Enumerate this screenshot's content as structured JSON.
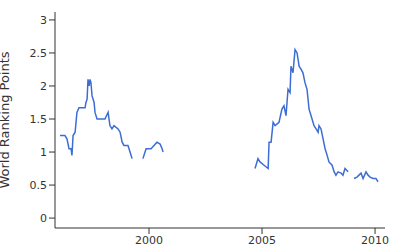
{
  "chart_data": {
    "type": "line",
    "y_label": "World Ranking Points",
    "color": "#3d6dd4",
    "xlim": [
      1995.84,
      2010.44
    ],
    "ylim": [
      -0.15,
      3.12
    ],
    "xticks": [
      2000,
      2005,
      2010
    ],
    "yticks": [
      0,
      0.5,
      1,
      1.5,
      2,
      2.5,
      3
    ],
    "grid": false,
    "x": [
      1996.06,
      1996.28,
      1996.37,
      1996.46,
      1996.55,
      1996.59,
      1996.64,
      1996.73,
      1996.81,
      1996.9,
      1997.17,
      1997.21,
      1997.26,
      1997.3,
      1997.35,
      1997.39,
      1997.43,
      1997.48,
      1997.57,
      1997.61,
      1997.7,
      1998.05,
      1998.19,
      1998.27,
      1998.36,
      1998.45,
      1998.63,
      1998.72,
      1998.81,
      1998.89,
      1999.07,
      1999.16,
      1999.25,
      1999.6,
      1999.73,
      1999.87,
      2000.09,
      2000.22,
      2000.35,
      2000.49,
      2000.58,
      2000.62,
      2002.5,
      2004.69,
      2004.82,
      2004.91,
      2005.09,
      2005.27,
      2005.31,
      2005.4,
      2005.49,
      2005.58,
      2005.75,
      2005.88,
      2005.97,
      2006.06,
      2006.15,
      2006.24,
      2006.28,
      2006.37,
      2006.46,
      2006.55,
      2006.64,
      2006.73,
      2006.81,
      2006.9,
      2006.99,
      2007.08,
      2007.17,
      2007.3,
      2007.39,
      2007.48,
      2007.52,
      2007.61,
      2007.7,
      2007.79,
      2007.88,
      2007.96,
      2008.1,
      2008.19,
      2008.27,
      2008.36,
      2008.5,
      2008.58,
      2008.67,
      2008.81,
      2008.95,
      2009.07,
      2009.2,
      2009.29,
      2009.38,
      2009.47,
      2009.6,
      2009.69,
      2009.78,
      2009.91,
      2010.04,
      2010.13
    ],
    "values": [
      1.25,
      1.25,
      1.2,
      1.05,
      1.05,
      0.95,
      1.25,
      1.3,
      1.6,
      1.67,
      1.67,
      1.75,
      1.8,
      2.1,
      2.0,
      2.1,
      2.05,
      1.85,
      1.75,
      1.6,
      1.5,
      1.5,
      1.6,
      1.4,
      1.35,
      1.4,
      1.35,
      1.3,
      1.15,
      1.1,
      1.1,
      1.0,
      0.9,
      null,
      0.9,
      1.05,
      1.05,
      1.1,
      1.15,
      1.12,
      1.05,
      1.0,
      null,
      0.75,
      0.9,
      0.85,
      0.8,
      0.75,
      1.15,
      1.15,
      1.45,
      1.4,
      1.45,
      1.65,
      1.7,
      1.55,
      1.95,
      1.9,
      2.3,
      2.2,
      2.55,
      2.5,
      2.3,
      2.25,
      2.2,
      2.05,
      1.95,
      1.65,
      1.55,
      1.4,
      1.35,
      1.3,
      1.4,
      1.35,
      1.2,
      1.05,
      0.95,
      0.85,
      0.8,
      0.7,
      0.65,
      0.7,
      0.68,
      0.65,
      0.75,
      0.7,
      null,
      0.6,
      0.62,
      0.65,
      0.68,
      0.6,
      0.7,
      0.65,
      0.62,
      0.6,
      0.6,
      0.55
    ]
  }
}
